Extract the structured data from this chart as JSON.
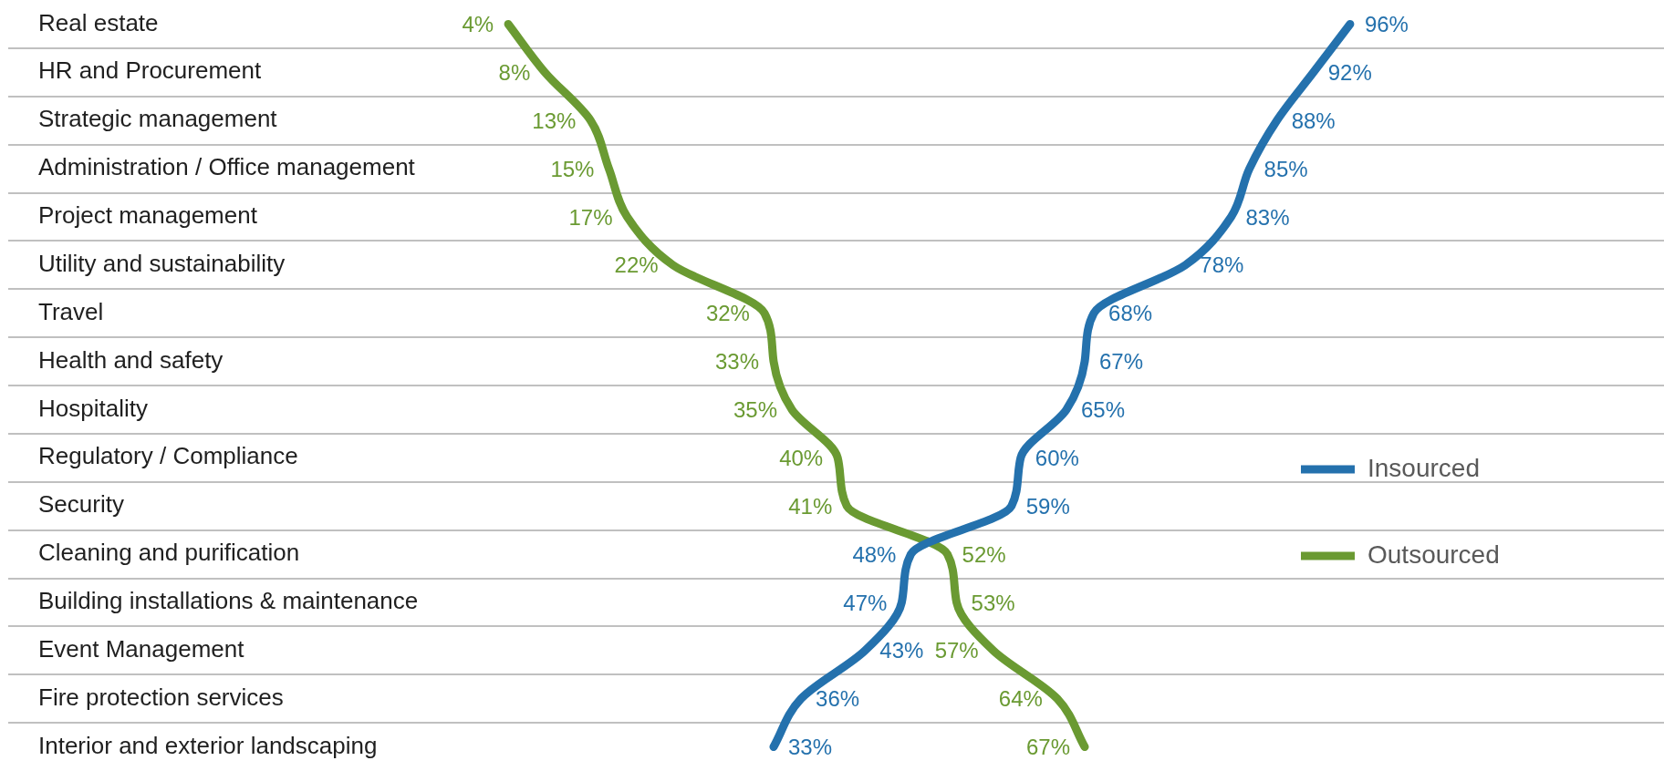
{
  "chart_data": {
    "type": "line",
    "orientation": "horizontal",
    "categories": [
      "Real estate",
      "HR and Procurement",
      "Strategic management",
      "Administration / Office management",
      "Project management",
      "Utility and sustainability",
      "Travel",
      "Health and safety",
      "Hospitality",
      "Regulatory / Compliance",
      "Security",
      "Cleaning and purification",
      "Building installations & maintenance",
      "Event Management",
      "Fire protection services",
      "Interior and exterior landscaping"
    ],
    "series": [
      {
        "name": "Insourced",
        "color": "#2471ad",
        "values": [
          96,
          92,
          88,
          85,
          83,
          78,
          68,
          67,
          65,
          60,
          59,
          48,
          47,
          43,
          36,
          33
        ],
        "value_labels": [
          "96%",
          "92%",
          "88%",
          "85%",
          "83%",
          "78%",
          "68%",
          "67%",
          "65%",
          "60%",
          "59%",
          "48%",
          "47%",
          "43%",
          "36%",
          "33%"
        ]
      },
      {
        "name": "Outsourced",
        "color": "#6a9a32",
        "values": [
          4,
          8,
          13,
          15,
          17,
          22,
          32,
          33,
          35,
          40,
          41,
          52,
          53,
          57,
          64,
          67
        ],
        "value_labels": [
          "4%",
          "8%",
          "13%",
          "15%",
          "17%",
          "22%",
          "32%",
          "33%",
          "35%",
          "40%",
          "41%",
          "52%",
          "53%",
          "57%",
          "64%",
          "67%"
        ]
      }
    ],
    "grid": "y",
    "legend": "right",
    "tick_labels": "y",
    "marker": "none"
  }
}
